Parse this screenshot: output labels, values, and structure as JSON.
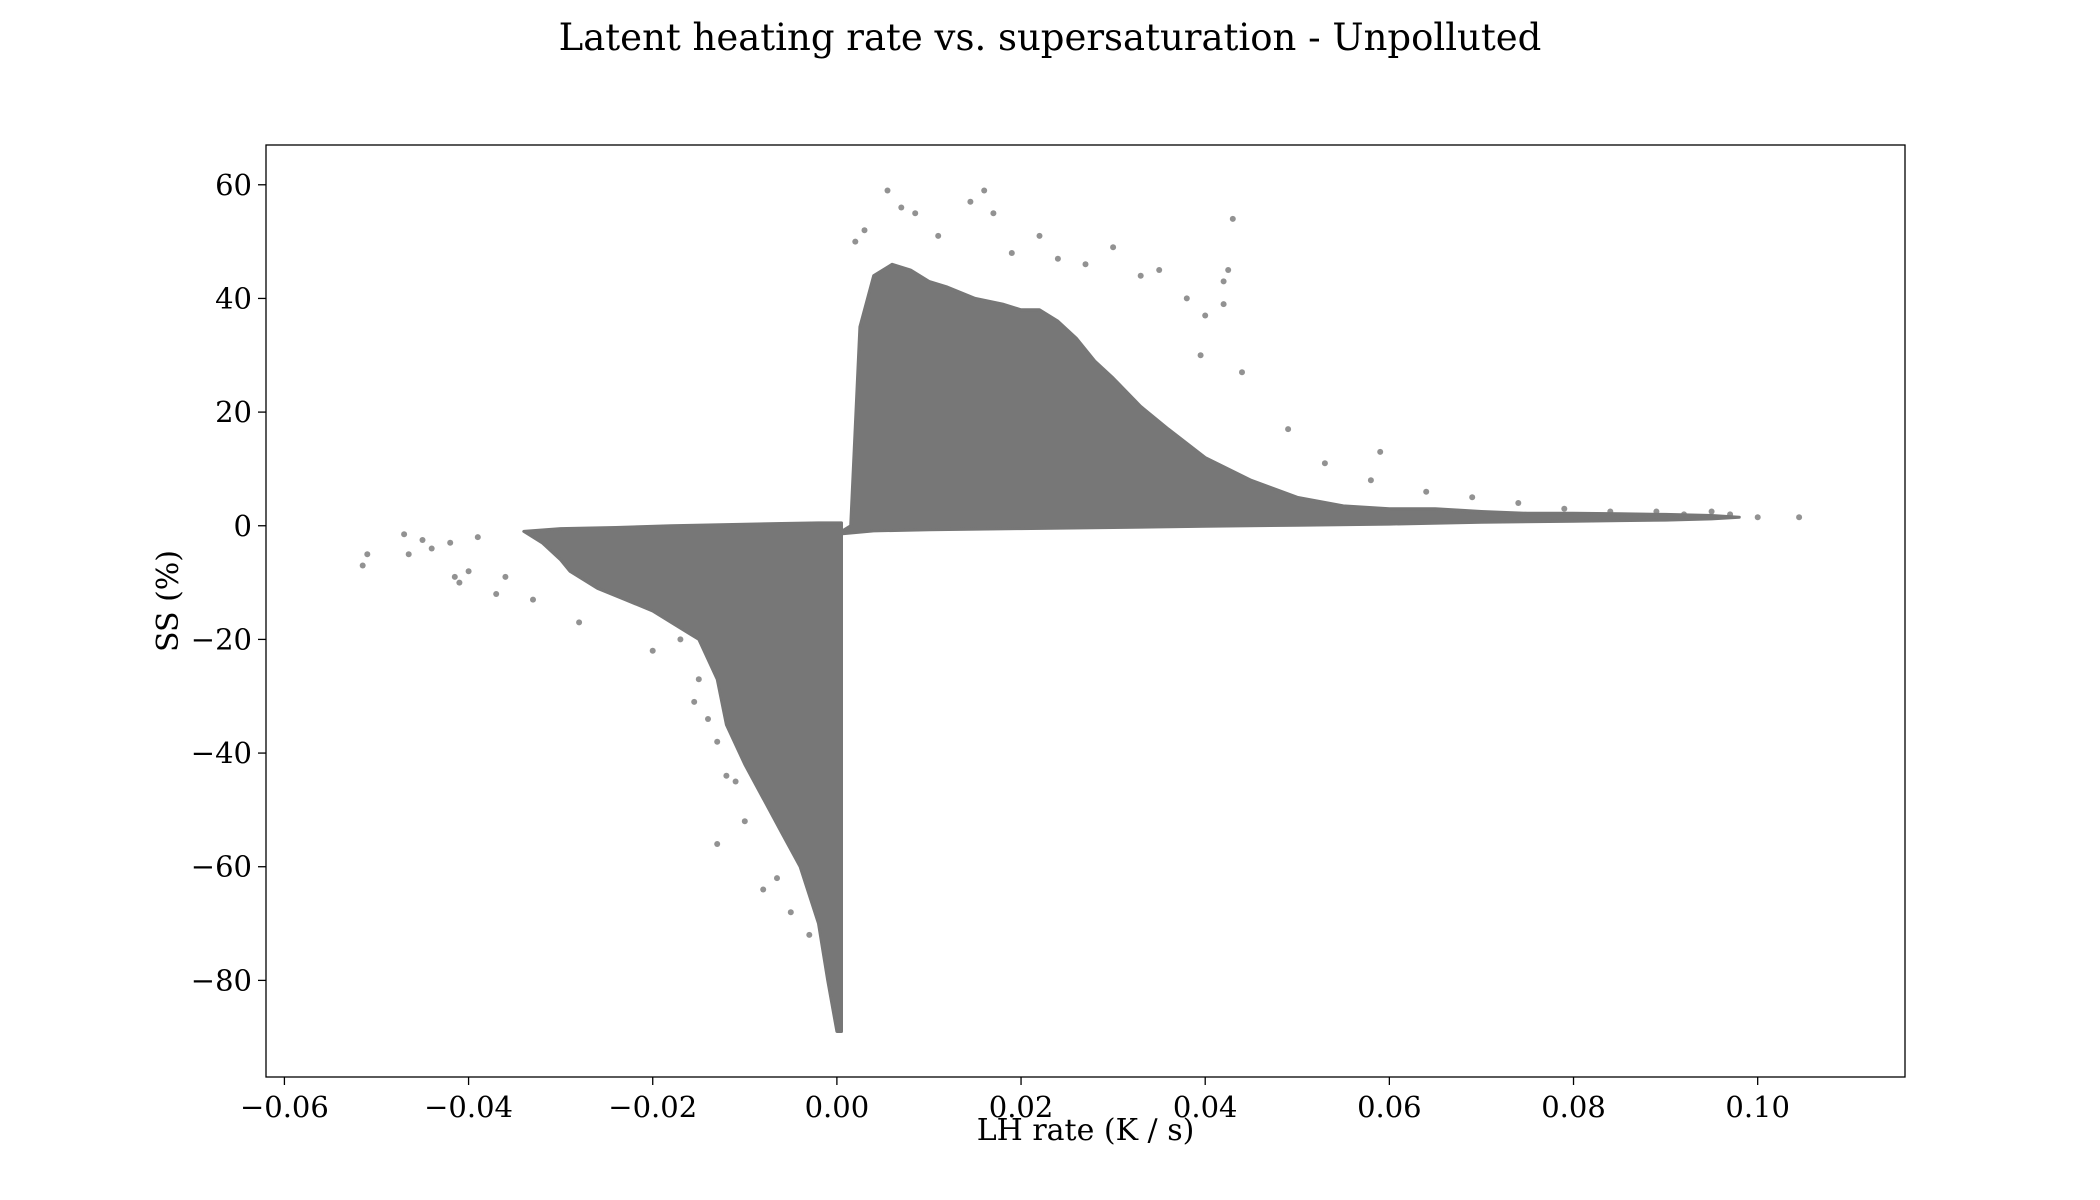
{
  "chart_data": {
    "type": "scatter",
    "title": "Latent heating rate vs. supersaturation - Unpolluted",
    "xlabel": "LH rate (K / s)",
    "ylabel": "SS (%)",
    "xlim": [
      -0.062,
      0.116
    ],
    "ylim": [
      -97,
      67
    ],
    "x_ticks": [
      -0.06,
      -0.04,
      -0.02,
      0.0,
      0.02,
      0.04,
      0.06,
      0.08,
      0.1
    ],
    "x_tick_labels": [
      "−0.06",
      "−0.04",
      "−0.02",
      "0.00",
      "0.02",
      "0.04",
      "0.06",
      "0.08",
      "0.10"
    ],
    "y_ticks": [
      60,
      40,
      20,
      0,
      -20,
      -40,
      -60,
      -80
    ],
    "y_tick_labels": [
      "60",
      "40",
      "20",
      "0",
      "−20",
      "−40",
      "−60",
      "−80"
    ],
    "grid": false,
    "legend": false,
    "marker_color": "#777777",
    "series": [
      {
        "regions": [
          {
            "x": [
              0.0,
              0.0015,
              0.0025,
              0.004,
              0.006,
              0.008,
              0.01,
              0.012,
              0.015,
              0.018,
              0.02,
              0.022,
              0.024,
              0.026,
              0.028,
              0.03,
              0.033,
              0.036,
              0.04,
              0.045,
              0.05,
              0.055,
              0.06,
              0.065,
              0.07,
              0.075,
              0.08,
              0.085,
              0.09,
              0.095,
              0.098,
              0.095,
              0.09,
              0.085,
              0.08,
              0.07,
              0.06,
              0.05,
              0.04,
              0.03,
              0.02,
              0.01,
              0.004,
              0.0
            ],
            "y": [
              -1.5,
              0,
              35,
              44,
              46,
              45,
              43,
              42,
              40,
              39,
              38,
              38,
              36,
              33,
              29,
              26,
              21,
              17,
              12,
              8,
              5,
              3.5,
              3,
              3,
              2.5,
              2.2,
              2.2,
              2.1,
              2,
              1.8,
              1.5,
              1.2,
              1.0,
              0.9,
              0.8,
              0.6,
              0.3,
              0.1,
              -0.1,
              -0.3,
              -0.5,
              -0.7,
              -0.9,
              -1.5
            ]
          },
          {
            "x": [
              0.0005,
              0.0005,
              0.0,
              -0.001,
              -0.002,
              -0.004,
              -0.006,
              -0.008,
              -0.01,
              -0.012,
              -0.013,
              -0.015,
              -0.018,
              -0.02,
              -0.023,
              -0.026,
              -0.029,
              -0.03,
              -0.032,
              -0.034,
              -0.03,
              -0.024,
              -0.018,
              -0.012,
              -0.006,
              -0.002,
              0.0005
            ],
            "y": [
              0.5,
              -89,
              -89,
              -80,
              -70,
              -60,
              -54,
              -48,
              -42,
              -35,
              -27,
              -20,
              -17,
              -15,
              -13,
              -11,
              -8,
              -6,
              -3,
              -1,
              -0.5,
              -0.3,
              0,
              0.2,
              0.4,
              0.5,
              0.5
            ]
          }
        ],
        "outliers": [
          [
            -0.0515,
            -7
          ],
          [
            -0.051,
            -5
          ],
          [
            -0.047,
            -1.5
          ],
          [
            -0.0465,
            -5
          ],
          [
            -0.045,
            -2.5
          ],
          [
            -0.044,
            -4
          ],
          [
            -0.042,
            -3
          ],
          [
            -0.0415,
            -9
          ],
          [
            -0.041,
            -10
          ],
          [
            -0.04,
            -8
          ],
          [
            -0.039,
            -2
          ],
          [
            -0.037,
            -12
          ],
          [
            -0.036,
            -9
          ],
          [
            -0.033,
            -13
          ],
          [
            -0.028,
            -17
          ],
          [
            -0.02,
            -22
          ],
          [
            -0.017,
            -20
          ],
          [
            -0.015,
            -27
          ],
          [
            -0.0155,
            -31
          ],
          [
            -0.014,
            -34
          ],
          [
            -0.013,
            -38
          ],
          [
            -0.012,
            -44
          ],
          [
            -0.013,
            -56
          ],
          [
            -0.011,
            -45
          ],
          [
            -0.01,
            -52
          ],
          [
            -0.008,
            -64
          ],
          [
            -0.0065,
            -62
          ],
          [
            -0.005,
            -68
          ],
          [
            -0.003,
            -72
          ],
          [
            0.002,
            50
          ],
          [
            0.003,
            52
          ],
          [
            0.0055,
            59
          ],
          [
            0.007,
            56
          ],
          [
            0.0085,
            55
          ],
          [
            0.011,
            51
          ],
          [
            0.0145,
            57
          ],
          [
            0.016,
            59
          ],
          [
            0.017,
            55
          ],
          [
            0.019,
            48
          ],
          [
            0.022,
            51
          ],
          [
            0.024,
            47
          ],
          [
            0.027,
            46
          ],
          [
            0.03,
            49
          ],
          [
            0.033,
            44
          ],
          [
            0.035,
            45
          ],
          [
            0.038,
            40
          ],
          [
            0.04,
            37
          ],
          [
            0.042,
            43
          ],
          [
            0.0425,
            45
          ],
          [
            0.043,
            54
          ],
          [
            0.042,
            39
          ],
          [
            0.0395,
            30
          ],
          [
            0.044,
            27
          ],
          [
            0.049,
            17
          ],
          [
            0.053,
            11
          ],
          [
            0.058,
            8
          ],
          [
            0.059,
            13
          ],
          [
            0.064,
            6
          ],
          [
            0.069,
            5
          ],
          [
            0.074,
            4
          ],
          [
            0.079,
            3
          ],
          [
            0.084,
            2.5
          ],
          [
            0.089,
            2.5
          ],
          [
            0.092,
            2
          ],
          [
            0.095,
            2.5
          ],
          [
            0.097,
            2
          ],
          [
            0.1,
            1.5
          ],
          [
            0.1045,
            1.5
          ]
        ]
      }
    ]
  }
}
